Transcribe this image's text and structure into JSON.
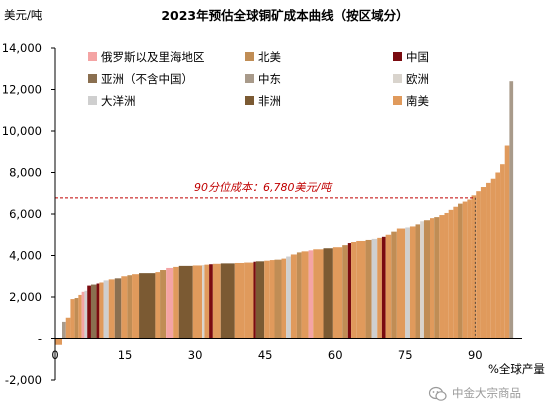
{
  "chart_data": {
    "type": "bar",
    "title": "2023年预估全球铜矿成本曲线（按区域分）",
    "ylabel": "美元/吨",
    "xlabel": "%全球产量",
    "ylim": [
      -2000,
      14000
    ],
    "xlim": [
      0,
      100
    ],
    "yticks": [
      -2000,
      0,
      2000,
      4000,
      6000,
      8000,
      10000,
      12000,
      14000
    ],
    "ytick_labels": [
      "-2,000",
      "-",
      "2,000",
      "4,000",
      "6,000",
      "8,000",
      "10,000",
      "12,000",
      "14,000"
    ],
    "xticks": [
      0,
      15,
      30,
      45,
      60,
      75,
      90
    ],
    "grid": false,
    "legend_position": "top",
    "colors": {
      "俄罗斯": "#f4a4a4",
      "北美": "#c08d55",
      "中国": "#7a0b10",
      "亚洲（不含中国）": "#8a6f50",
      "中东": "#a89a8a",
      "欧洲": "#d9d4cd",
      "大洋洲": "#cfcfcf",
      "非洲": "#7b5a33",
      "南美": "#e09a5c"
    },
    "legend": [
      {
        "key": "俄罗斯",
        "label": "俄罗斯以及里海地区"
      },
      {
        "key": "北美",
        "label": "北美"
      },
      {
        "key": "中国",
        "label": "中国"
      },
      {
        "key": "亚洲（不含中国）",
        "label": "亚洲（不含中国）"
      },
      {
        "key": "中东",
        "label": "中东"
      },
      {
        "key": "欧洲",
        "label": "欧洲"
      },
      {
        "key": "大洋洲",
        "label": "大洋洲"
      },
      {
        "key": "非洲",
        "label": "非洲"
      },
      {
        "key": "南美",
        "label": "南美"
      }
    ],
    "reference_line": {
      "value": 6780,
      "x_percentile": 90,
      "label": "90分位成本：6,780美元/吨"
    },
    "bars": [
      {
        "x0": 0.0,
        "x1": 1.5,
        "value": -300,
        "region": "南美"
      },
      {
        "x0": 1.5,
        "x1": 2.3,
        "value": 800,
        "region": "中东"
      },
      {
        "x0": 2.3,
        "x1": 3.3,
        "value": 1000,
        "region": "南美"
      },
      {
        "x0": 3.3,
        "x1": 4.2,
        "value": 1900,
        "region": "南美"
      },
      {
        "x0": 4.2,
        "x1": 5.0,
        "value": 1950,
        "region": "北美"
      },
      {
        "x0": 5.0,
        "x1": 5.7,
        "value": 2100,
        "region": "南美"
      },
      {
        "x0": 5.7,
        "x1": 6.3,
        "value": 2250,
        "region": "俄罗斯"
      },
      {
        "x0": 6.3,
        "x1": 6.9,
        "value": 2300,
        "region": "大洋洲"
      },
      {
        "x0": 6.9,
        "x1": 7.7,
        "value": 2550,
        "region": "中国"
      },
      {
        "x0": 7.7,
        "x1": 8.9,
        "value": 2600,
        "region": "亚洲（不含中国）"
      },
      {
        "x0": 8.9,
        "x1": 9.5,
        "value": 2650,
        "region": "中国"
      },
      {
        "x0": 9.5,
        "x1": 10.4,
        "value": 2700,
        "region": "南美"
      },
      {
        "x0": 10.4,
        "x1": 11.5,
        "value": 2800,
        "region": "大洋洲"
      },
      {
        "x0": 11.5,
        "x1": 12.8,
        "value": 2850,
        "region": "南美"
      },
      {
        "x0": 12.8,
        "x1": 14.2,
        "value": 2900,
        "region": "亚洲（不含中国）"
      },
      {
        "x0": 14.2,
        "x1": 15.5,
        "value": 3000,
        "region": "南美"
      },
      {
        "x0": 15.5,
        "x1": 16.5,
        "value": 3050,
        "region": "北美"
      },
      {
        "x0": 16.5,
        "x1": 18.0,
        "value": 3100,
        "region": "南美"
      },
      {
        "x0": 18.0,
        "x1": 21.5,
        "value": 3150,
        "region": "非洲"
      },
      {
        "x0": 21.5,
        "x1": 22.5,
        "value": 3200,
        "region": "南美"
      },
      {
        "x0": 22.5,
        "x1": 23.8,
        "value": 3300,
        "region": "北美"
      },
      {
        "x0": 23.8,
        "x1": 25.3,
        "value": 3400,
        "region": "俄罗斯"
      },
      {
        "x0": 25.3,
        "x1": 26.5,
        "value": 3450,
        "region": "南美"
      },
      {
        "x0": 26.5,
        "x1": 29.5,
        "value": 3500,
        "region": "非洲"
      },
      {
        "x0": 29.5,
        "x1": 31.5,
        "value": 3520,
        "region": "南美"
      },
      {
        "x0": 31.5,
        "x1": 32.0,
        "value": 3540,
        "region": "欧洲"
      },
      {
        "x0": 32.0,
        "x1": 33.0,
        "value": 3560,
        "region": "南美"
      },
      {
        "x0": 33.0,
        "x1": 33.8,
        "value": 3580,
        "region": "中国"
      },
      {
        "x0": 33.8,
        "x1": 35.5,
        "value": 3600,
        "region": "南美"
      },
      {
        "x0": 35.5,
        "x1": 38.5,
        "value": 3620,
        "region": "非洲"
      },
      {
        "x0": 38.5,
        "x1": 40.5,
        "value": 3640,
        "region": "南美"
      },
      {
        "x0": 40.5,
        "x1": 42.5,
        "value": 3660,
        "region": "南美"
      },
      {
        "x0": 42.5,
        "x1": 43.0,
        "value": 3700,
        "region": "中国"
      },
      {
        "x0": 43.0,
        "x1": 44.8,
        "value": 3720,
        "region": "非洲"
      },
      {
        "x0": 44.8,
        "x1": 46.0,
        "value": 3750,
        "region": "南美"
      },
      {
        "x0": 46.0,
        "x1": 47.0,
        "value": 3780,
        "region": "南美"
      },
      {
        "x0": 47.0,
        "x1": 48.5,
        "value": 3800,
        "region": "北美"
      },
      {
        "x0": 48.5,
        "x1": 49.5,
        "value": 3850,
        "region": "南美"
      },
      {
        "x0": 49.5,
        "x1": 50.5,
        "value": 3950,
        "region": "大洋洲"
      },
      {
        "x0": 50.5,
        "x1": 51.8,
        "value": 4050,
        "region": "南美"
      },
      {
        "x0": 51.8,
        "x1": 52.8,
        "value": 4150,
        "region": "北美"
      },
      {
        "x0": 52.8,
        "x1": 54.3,
        "value": 4200,
        "region": "南美"
      },
      {
        "x0": 54.3,
        "x1": 55.3,
        "value": 4250,
        "region": "俄罗斯"
      },
      {
        "x0": 55.3,
        "x1": 57.5,
        "value": 4300,
        "region": "南美"
      },
      {
        "x0": 57.5,
        "x1": 59.5,
        "value": 4350,
        "region": "非洲"
      },
      {
        "x0": 59.5,
        "x1": 61.5,
        "value": 4400,
        "region": "南美"
      },
      {
        "x0": 61.5,
        "x1": 62.7,
        "value": 4500,
        "region": "北美"
      },
      {
        "x0": 62.7,
        "x1": 63.4,
        "value": 4600,
        "region": "中国"
      },
      {
        "x0": 63.4,
        "x1": 64.5,
        "value": 4650,
        "region": "南美"
      },
      {
        "x0": 64.5,
        "x1": 66.5,
        "value": 4700,
        "region": "南美"
      },
      {
        "x0": 66.5,
        "x1": 67.8,
        "value": 4750,
        "region": "北美"
      },
      {
        "x0": 67.8,
        "x1": 69.0,
        "value": 4800,
        "region": "大洋洲"
      },
      {
        "x0": 69.0,
        "x1": 70.0,
        "value": 4850,
        "region": "南美"
      },
      {
        "x0": 70.0,
        "x1": 70.8,
        "value": 4900,
        "region": "中国"
      },
      {
        "x0": 70.8,
        "x1": 72.0,
        "value": 5000,
        "region": "南美"
      },
      {
        "x0": 72.0,
        "x1": 73.2,
        "value": 5150,
        "region": "北美"
      },
      {
        "x0": 73.2,
        "x1": 75.0,
        "value": 5300,
        "region": "南美"
      },
      {
        "x0": 75.0,
        "x1": 76.0,
        "value": 5350,
        "region": "大洋洲"
      },
      {
        "x0": 76.0,
        "x1": 77.2,
        "value": 5400,
        "region": "南美"
      },
      {
        "x0": 77.2,
        "x1": 78.2,
        "value": 5500,
        "region": "北美"
      },
      {
        "x0": 78.2,
        "x1": 79.0,
        "value": 5650,
        "region": "欧洲"
      },
      {
        "x0": 79.0,
        "x1": 80.3,
        "value": 5700,
        "region": "北美"
      },
      {
        "x0": 80.3,
        "x1": 81.2,
        "value": 5800,
        "region": "南美"
      },
      {
        "x0": 81.2,
        "x1": 82.3,
        "value": 5850,
        "region": "北美"
      },
      {
        "x0": 82.3,
        "x1": 83.4,
        "value": 5950,
        "region": "南美"
      },
      {
        "x0": 83.4,
        "x1": 84.3,
        "value": 6050,
        "region": "南美"
      },
      {
        "x0": 84.3,
        "x1": 85.3,
        "value": 6200,
        "region": "南美"
      },
      {
        "x0": 85.3,
        "x1": 86.3,
        "value": 6350,
        "region": "南美"
      },
      {
        "x0": 86.3,
        "x1": 87.3,
        "value": 6500,
        "region": "北美"
      },
      {
        "x0": 87.3,
        "x1": 88.3,
        "value": 6600,
        "region": "南美"
      },
      {
        "x0": 88.3,
        "x1": 89.2,
        "value": 6700,
        "region": "南美"
      },
      {
        "x0": 89.2,
        "x1": 90.2,
        "value": 6900,
        "region": "南美"
      },
      {
        "x0": 90.2,
        "x1": 91.2,
        "value": 7100,
        "region": "南美"
      },
      {
        "x0": 91.2,
        "x1": 92.3,
        "value": 7300,
        "region": "南美"
      },
      {
        "x0": 92.3,
        "x1": 93.3,
        "value": 7500,
        "region": "南美"
      },
      {
        "x0": 93.3,
        "x1": 94.3,
        "value": 7700,
        "region": "南美"
      },
      {
        "x0": 94.3,
        "x1": 95.3,
        "value": 8000,
        "region": "南美"
      },
      {
        "x0": 95.3,
        "x1": 96.3,
        "value": 8400,
        "region": "南美"
      },
      {
        "x0": 96.3,
        "x1": 97.3,
        "value": 9300,
        "region": "南美"
      },
      {
        "x0": 97.3,
        "x1": 98.1,
        "value": 12400,
        "region": "中东"
      }
    ]
  },
  "watermark": {
    "icon": "wechat-icon",
    "text": "中金大宗商品"
  }
}
